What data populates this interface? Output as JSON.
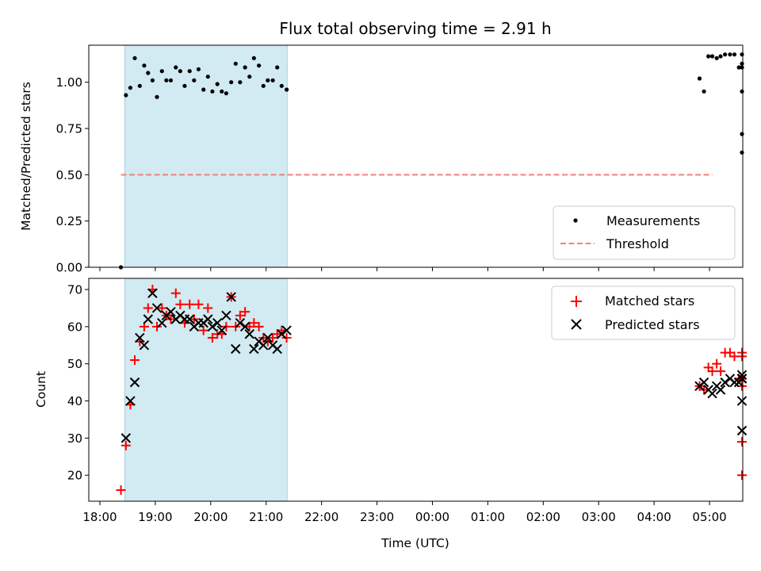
{
  "chart_data": {
    "type": "scatter",
    "title": "Flux total observing time = 2.91 h",
    "xlabel": "Time (UTC)",
    "x_tick_labels": [
      "18:00",
      "19:00",
      "20:00",
      "21:00",
      "22:00",
      "23:00",
      "00:00",
      "01:00",
      "02:00",
      "03:00",
      "04:00",
      "05:00"
    ],
    "x_range_hours": [
      17.8,
      29.6
    ],
    "highlight_span_hours": [
      18.45,
      21.38
    ],
    "colors": {
      "span": "#add8e6",
      "measurement": "#000000",
      "threshold": "#f08080",
      "matched": "#ff0000",
      "predicted": "#000000"
    },
    "panels": [
      {
        "ylabel": "Matched/Predicted stars",
        "ylim": [
          0,
          1.2
        ],
        "yticks": [
          0.0,
          0.25,
          0.5,
          0.75,
          1.0
        ],
        "ytick_labels": [
          "0.00",
          "0.25",
          "0.50",
          "0.75",
          "1.00"
        ],
        "legend_position": "lower-right",
        "legend": [
          "Measurements",
          "Threshold"
        ],
        "threshold": {
          "value": 0.5,
          "x_start": 18.38,
          "x_end": 29.05
        },
        "measurements": {
          "x": [
            18.38,
            18.47,
            18.55,
            18.63,
            18.72,
            18.8,
            18.87,
            18.95,
            19.03,
            19.12,
            19.2,
            19.28,
            19.37,
            19.45,
            19.53,
            19.62,
            19.7,
            19.78,
            19.87,
            19.95,
            20.03,
            20.12,
            20.2,
            20.28,
            20.37,
            20.45,
            20.53,
            20.62,
            20.7,
            20.78,
            20.87,
            20.95,
            21.03,
            21.12,
            21.2,
            21.28,
            21.37,
            28.82,
            28.9,
            28.98,
            29.05,
            29.13,
            29.2,
            29.28,
            29.37,
            29.45,
            29.53,
            29.62,
            29.7,
            29.78,
            29.87,
            29.95,
            30.02
          ],
          "y": [
            0.0,
            0.93,
            0.97,
            1.13,
            0.98,
            1.09,
            1.05,
            1.01,
            0.92,
            1.06,
            1.01,
            1.01,
            1.08,
            1.06,
            0.98,
            1.06,
            1.01,
            1.07,
            0.96,
            1.03,
            0.95,
            0.99,
            0.95,
            0.94,
            1.0,
            1.1,
            1.0,
            1.08,
            1.03,
            1.13,
            1.09,
            0.98,
            1.01,
            1.01,
            1.08,
            0.98,
            0.96,
            1.02,
            0.95,
            1.14,
            1.14,
            1.13,
            1.14,
            1.15,
            1.15,
            1.15,
            1.08,
            1.08,
            1.15,
            1.1,
            0.95,
            0.72,
            0.62
          ]
        }
      },
      {
        "ylabel": "Count",
        "ylim": [
          13,
          73
        ],
        "yticks": [
          20,
          30,
          40,
          50,
          60,
          70
        ],
        "ytick_labels": [
          "20",
          "30",
          "40",
          "50",
          "60",
          "70"
        ],
        "legend_position": "upper-right",
        "legend": [
          "Matched stars",
          "Predicted stars"
        ],
        "matched": {
          "x": [
            18.38,
            18.47,
            18.55,
            18.63,
            18.72,
            18.8,
            18.87,
            18.95,
            19.03,
            19.12,
            19.2,
            19.28,
            19.37,
            19.45,
            19.53,
            19.62,
            19.7,
            19.78,
            19.87,
            19.95,
            20.03,
            20.12,
            20.2,
            20.28,
            20.37,
            20.45,
            20.53,
            20.62,
            20.7,
            20.78,
            20.87,
            20.95,
            21.03,
            21.12,
            21.2,
            21.28,
            21.37,
            28.82,
            28.9,
            28.98,
            29.05,
            29.13,
            29.2,
            29.28,
            29.37,
            29.45,
            29.53,
            29.62,
            29.7,
            29.78,
            29.87,
            29.95,
            30.02
          ],
          "y": [
            16,
            28,
            39,
            51,
            56,
            60,
            65,
            70,
            60,
            65,
            63,
            62,
            69,
            66,
            61,
            66,
            62,
            66,
            59,
            65,
            57,
            58,
            58,
            60,
            68,
            60,
            63,
            64,
            60,
            61,
            60,
            57,
            56,
            57,
            58,
            59,
            57,
            44,
            43,
            49,
            48,
            50,
            48,
            53,
            53,
            52,
            46,
            46,
            53,
            52,
            44,
            29,
            20
          ]
        },
        "predicted": {
          "x": [
            18.47,
            18.55,
            18.63,
            18.72,
            18.8,
            18.87,
            18.95,
            19.03,
            19.12,
            19.2,
            19.28,
            19.37,
            19.45,
            19.53,
            19.62,
            19.7,
            19.78,
            19.87,
            19.95,
            20.03,
            20.12,
            20.2,
            20.28,
            20.37,
            20.45,
            20.53,
            20.62,
            20.7,
            20.78,
            20.87,
            20.95,
            21.03,
            21.12,
            21.2,
            21.28,
            21.37,
            28.82,
            28.9,
            28.98,
            29.05,
            29.13,
            29.2,
            29.28,
            29.37,
            29.45,
            29.53,
            29.62,
            29.7,
            29.78,
            29.87,
            29.95,
            30.02
          ],
          "y": [
            30,
            40,
            45,
            57,
            55,
            62,
            69,
            65,
            61,
            63,
            64,
            62,
            63,
            62,
            62,
            60,
            61,
            61,
            62,
            60,
            61,
            59,
            63,
            68,
            54,
            61,
            60,
            58,
            54,
            56,
            55,
            57,
            55,
            54,
            58,
            59,
            44,
            45,
            43,
            42,
            44,
            43,
            45,
            46,
            45,
            45,
            46,
            46,
            47,
            46,
            40,
            32
          ]
        }
      }
    ]
  }
}
